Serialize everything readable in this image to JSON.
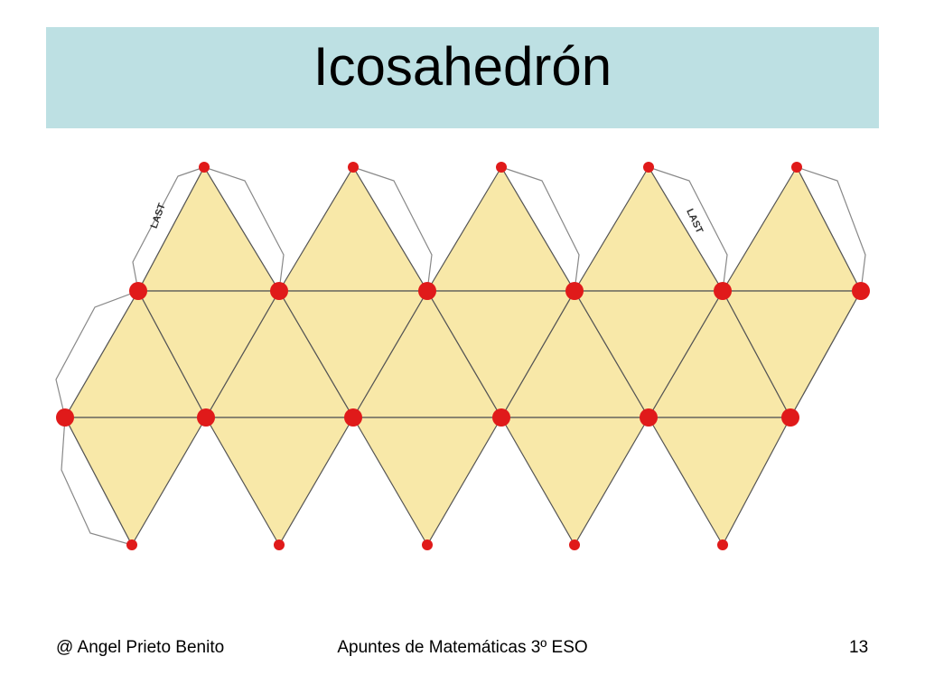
{
  "header": {
    "title": "Icosahedrón"
  },
  "net": {
    "tab_labels": [
      "LAST",
      "LAST"
    ]
  },
  "footer": {
    "author": "@ Angel Prieto Benito",
    "course": "Apuntes de Matemáticas 3º ESO",
    "page": 13
  }
}
